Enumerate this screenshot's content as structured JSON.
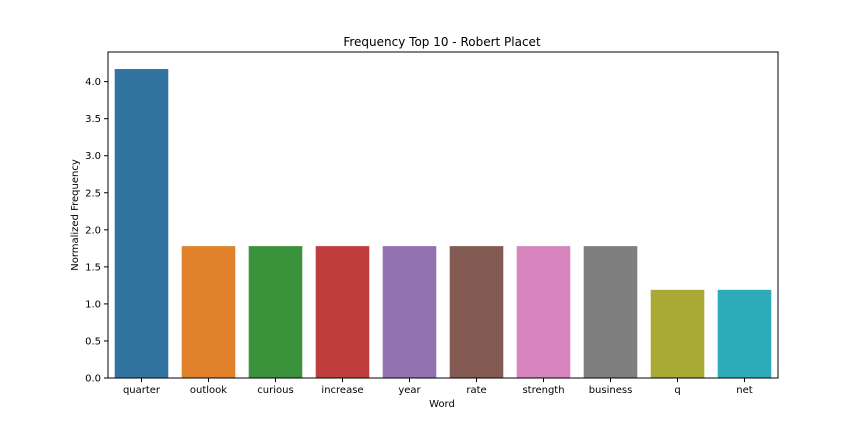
{
  "chart_data": {
    "type": "bar",
    "title": "Frequency Top 10 - Robert Placet",
    "xlabel": "Word",
    "ylabel": "Normalized Frequency",
    "categories": [
      "quarter",
      "outlook",
      "curious",
      "increase",
      "year",
      "rate",
      "strength",
      "business",
      "q",
      "net"
    ],
    "values": [
      4.17,
      1.78,
      1.78,
      1.78,
      1.78,
      1.78,
      1.78,
      1.78,
      1.19,
      1.19
    ],
    "colors": [
      "#3274a1",
      "#e1812c",
      "#3a923a",
      "#c03d3e",
      "#9372b2",
      "#845b53",
      "#d684bd",
      "#7f7f7f",
      "#a9aa35",
      "#2eabb8"
    ],
    "ylim": [
      0,
      4.4
    ],
    "yticks": [
      "0.0",
      "0.5",
      "1.0",
      "1.5",
      "2.0",
      "2.5",
      "3.0",
      "3.5",
      "4.0"
    ],
    "grid": false,
    "legend": "none"
  }
}
